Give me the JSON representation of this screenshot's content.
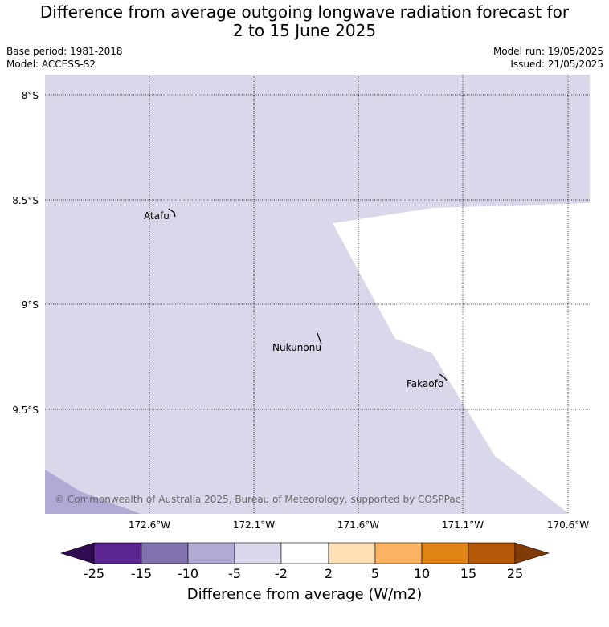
{
  "header": {
    "title_line1": "Difference from average outgoing longwave radiation forecast for",
    "title_line2": "2 to 15 June 2025",
    "base_period": "Base period: 1981-2018",
    "model": "Model: ACCESS-S2",
    "model_run": "Model run: 19/05/2025",
    "issued": "Issued: 21/05/2025"
  },
  "map": {
    "lat_labels": [
      "8°S",
      "8.5°S",
      "9°S",
      "9.5°S"
    ],
    "lon_labels": [
      "172.6°W",
      "172.1°W",
      "171.6°W",
      "171.1°W",
      "170.6°W"
    ],
    "places": [
      "Atafu",
      "Nukunonu",
      "Fakaofo"
    ],
    "copyright": "© Commonwealth of Australia 2025, Bureau of Meteorology, supported by COSPPac",
    "colors": {
      "light_purple": "#d8d8ea",
      "mid_purple": "#b0aad4",
      "white": "#ffffff"
    }
  },
  "colorbar": {
    "ticks": [
      "-25",
      "-15",
      "-10",
      "-5",
      "-2",
      "2",
      "5",
      "10",
      "15",
      "25"
    ],
    "colors": [
      "#2f0b52",
      "#5b2690",
      "#8073ad",
      "#b0aad4",
      "#d8d8ea",
      "#ffffff",
      "#fedfb4",
      "#fdb462",
      "#e08214",
      "#b35806",
      "#7f3b08"
    ],
    "label": "Difference from average (W/m2)"
  }
}
